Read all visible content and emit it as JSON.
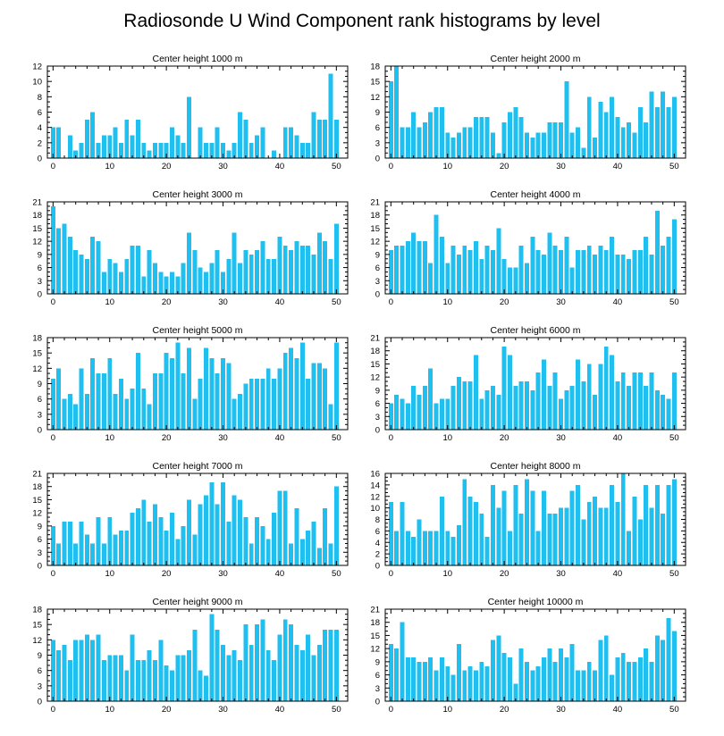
{
  "title": "Radiosonde U Wind Component rank histograms by level",
  "colors": {
    "bar": "#1fbff0",
    "frame": "#000000"
  },
  "chart_data": [
    {
      "type": "bar",
      "title": "Center height 1000 m",
      "xlim": [
        -1,
        52
      ],
      "ylim": [
        0,
        12
      ],
      "xticks": [
        0,
        10,
        20,
        30,
        40,
        50
      ],
      "yticks": [
        0,
        2,
        4,
        6,
        8,
        10,
        12
      ],
      "values": [
        4,
        4,
        0,
        3,
        1,
        2,
        5,
        6,
        2,
        3,
        3,
        4,
        2,
        5,
        3,
        5,
        2,
        1,
        2,
        2,
        2,
        4,
        3,
        2,
        8,
        0,
        4,
        2,
        2,
        4,
        2,
        1,
        2,
        6,
        5,
        2,
        3,
        4,
        0,
        1,
        0,
        4,
        4,
        3,
        2,
        2,
        6,
        5,
        5,
        11,
        5
      ]
    },
    {
      "type": "bar",
      "title": "Center height 2000 m",
      "xlim": [
        -1,
        52
      ],
      "ylim": [
        0,
        18
      ],
      "xticks": [
        0,
        10,
        20,
        30,
        40,
        50
      ],
      "yticks": [
        0,
        3,
        6,
        9,
        12,
        15,
        18
      ],
      "values": [
        15,
        18,
        6,
        6,
        9,
        6,
        7,
        9,
        10,
        10,
        5,
        4,
        5,
        6,
        6,
        8,
        8,
        8,
        5,
        1,
        7,
        9,
        10,
        8,
        5,
        4,
        5,
        5,
        7,
        7,
        7,
        15,
        5,
        6,
        2,
        12,
        4,
        11,
        9,
        12,
        8,
        6,
        7,
        5,
        10,
        7,
        13,
        10,
        13,
        10,
        12
      ]
    },
    {
      "type": "bar",
      "title": "Center height 3000 m",
      "xlim": [
        -1,
        52
      ],
      "ylim": [
        0,
        21
      ],
      "xticks": [
        0,
        10,
        20,
        30,
        40,
        50
      ],
      "yticks": [
        0,
        3,
        6,
        9,
        12,
        15,
        18,
        21
      ],
      "values": [
        20,
        15,
        16,
        13,
        10,
        9,
        8,
        13,
        12,
        5,
        8,
        7,
        5,
        8,
        11,
        11,
        4,
        10,
        7,
        5,
        4,
        5,
        4,
        7,
        14,
        10,
        6,
        5,
        7,
        10,
        5,
        8,
        14,
        7,
        10,
        9,
        10,
        12,
        8,
        8,
        13,
        11,
        10,
        12,
        11,
        11,
        9,
        14,
        12,
        8,
        16
      ]
    },
    {
      "type": "bar",
      "title": "Center height 4000 m",
      "xlim": [
        -1,
        52
      ],
      "ylim": [
        0,
        21
      ],
      "xticks": [
        0,
        10,
        20,
        30,
        40,
        50
      ],
      "yticks": [
        0,
        3,
        6,
        9,
        12,
        15,
        18,
        21
      ],
      "values": [
        10,
        11,
        11,
        12,
        14,
        12,
        12,
        7,
        18,
        13,
        7,
        11,
        9,
        11,
        10,
        12,
        8,
        11,
        10,
        15,
        8,
        6,
        6,
        11,
        7,
        13,
        10,
        9,
        14,
        11,
        10,
        13,
        6,
        10,
        10,
        11,
        9,
        11,
        10,
        13,
        9,
        9,
        8,
        10,
        10,
        13,
        9,
        19,
        11,
        13,
        17
      ]
    },
    {
      "type": "bar",
      "title": "Center height 5000 m",
      "xlim": [
        -1,
        52
      ],
      "ylim": [
        0,
        18
      ],
      "xticks": [
        0,
        10,
        20,
        30,
        40,
        50
      ],
      "yticks": [
        0,
        3,
        6,
        9,
        12,
        15,
        18
      ],
      "values": [
        10,
        12,
        6,
        7,
        5,
        12,
        7,
        14,
        11,
        11,
        14,
        7,
        10,
        6,
        8,
        15,
        8,
        5,
        11,
        11,
        15,
        14,
        17,
        11,
        16,
        6,
        10,
        16,
        14,
        11,
        14,
        13,
        6,
        7,
        9,
        10,
        10,
        10,
        12,
        10,
        12,
        15,
        16,
        14,
        17,
        10,
        13,
        13,
        12,
        5,
        17
      ]
    },
    {
      "type": "bar",
      "title": "Center height 6000 m",
      "xlim": [
        -1,
        52
      ],
      "ylim": [
        0,
        21
      ],
      "xticks": [
        0,
        10,
        20,
        30,
        40,
        50
      ],
      "yticks": [
        0,
        3,
        6,
        9,
        12,
        15,
        18,
        21
      ],
      "values": [
        6,
        8,
        7,
        6,
        10,
        8,
        10,
        14,
        6,
        7,
        7,
        10,
        12,
        11,
        11,
        17,
        7,
        9,
        10,
        8,
        19,
        17,
        10,
        11,
        11,
        9,
        13,
        16,
        10,
        13,
        7,
        9,
        10,
        16,
        11,
        15,
        8,
        15,
        19,
        17,
        11,
        13,
        10,
        13,
        13,
        10,
        13,
        9,
        8,
        7,
        13
      ]
    },
    {
      "type": "bar",
      "title": "Center height 7000 m",
      "xlim": [
        -1,
        52
      ],
      "ylim": [
        0,
        21
      ],
      "xticks": [
        0,
        10,
        20,
        30,
        40,
        50
      ],
      "yticks": [
        0,
        3,
        6,
        9,
        12,
        15,
        18,
        21
      ],
      "values": [
        9,
        5,
        10,
        10,
        5,
        10,
        7,
        5,
        11,
        5,
        11,
        7,
        8,
        8,
        12,
        13,
        15,
        10,
        14,
        11,
        8,
        12,
        6,
        9,
        15,
        7,
        14,
        16,
        19,
        14,
        19,
        10,
        16,
        15,
        11,
        5,
        11,
        9,
        6,
        12,
        17,
        17,
        5,
        13,
        6,
        8,
        10,
        4,
        13,
        5,
        18
      ]
    },
    {
      "type": "bar",
      "title": "Center height 8000 m",
      "xlim": [
        -1,
        52
      ],
      "ylim": [
        0,
        16
      ],
      "xticks": [
        0,
        10,
        20,
        30,
        40,
        50
      ],
      "yticks": [
        0,
        2,
        4,
        6,
        8,
        10,
        12,
        14,
        16
      ],
      "values": [
        11,
        6,
        11,
        6,
        5,
        8,
        6,
        6,
        6,
        12,
        6,
        5,
        7,
        15,
        12,
        11,
        9,
        5,
        14,
        10,
        13,
        6,
        14,
        9,
        15,
        13,
        6,
        13,
        9,
        9,
        10,
        10,
        13,
        14,
        8,
        11,
        12,
        10,
        10,
        14,
        11,
        16,
        6,
        12,
        8,
        14,
        10,
        14,
        9,
        14,
        15
      ]
    },
    {
      "type": "bar",
      "title": "Center height 9000 m",
      "xlim": [
        -1,
        52
      ],
      "ylim": [
        0,
        18
      ],
      "xticks": [
        0,
        10,
        20,
        30,
        40,
        50
      ],
      "yticks": [
        0,
        3,
        6,
        9,
        12,
        15,
        18
      ],
      "values": [
        12,
        10,
        11,
        8,
        12,
        12,
        13,
        12,
        13,
        8,
        9,
        9,
        9,
        6,
        13,
        8,
        8,
        10,
        8,
        12,
        7,
        6,
        9,
        9,
        10,
        14,
        6,
        5,
        17,
        14,
        11,
        9,
        10,
        8,
        15,
        11,
        15,
        16,
        10,
        8,
        13,
        16,
        15,
        11,
        10,
        13,
        9,
        11,
        14,
        14,
        14
      ]
    },
    {
      "type": "bar",
      "title": "Center height 10000 m",
      "xlim": [
        -1,
        52
      ],
      "ylim": [
        0,
        21
      ],
      "xticks": [
        0,
        10,
        20,
        30,
        40,
        50
      ],
      "yticks": [
        0,
        3,
        6,
        9,
        12,
        15,
        18,
        21
      ],
      "values": [
        13,
        12,
        18,
        10,
        10,
        9,
        9,
        10,
        7,
        10,
        8,
        6,
        13,
        7,
        8,
        7,
        9,
        8,
        14,
        15,
        11,
        10,
        4,
        12,
        9,
        7,
        8,
        10,
        12,
        9,
        12,
        10,
        13,
        7,
        7,
        9,
        7,
        14,
        15,
        6,
        10,
        11,
        9,
        9,
        10,
        12,
        9,
        15,
        14,
        19,
        16
      ]
    }
  ]
}
